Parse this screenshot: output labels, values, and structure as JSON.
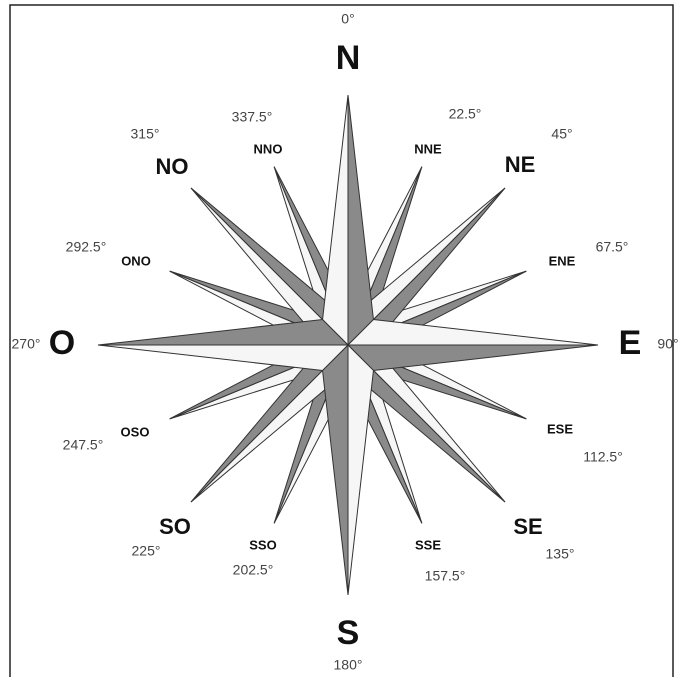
{
  "points": [
    {
      "label": "N",
      "degree": "0°"
    },
    {
      "label": "NNE",
      "degree": "22.5°"
    },
    {
      "label": "NE",
      "degree": "45°"
    },
    {
      "label": "ENE",
      "degree": "67.5°"
    },
    {
      "label": "E",
      "degree": "90°"
    },
    {
      "label": "ESE",
      "degree": "112.5°"
    },
    {
      "label": "SE",
      "degree": "135°"
    },
    {
      "label": "SSE",
      "degree": "157.5°"
    },
    {
      "label": "S",
      "degree": "180°"
    },
    {
      "label": "SSO",
      "degree": "202.5°"
    },
    {
      "label": "SO",
      "degree": "225°"
    },
    {
      "label": "OSO",
      "degree": "247.5°"
    },
    {
      "label": "O",
      "degree": "270°"
    },
    {
      "label": "ONO",
      "degree": "292.5°"
    },
    {
      "label": "NO",
      "degree": "315°"
    },
    {
      "label": "NNO",
      "degree": "337.5°"
    }
  ]
}
